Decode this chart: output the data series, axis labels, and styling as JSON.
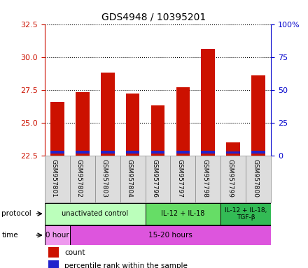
{
  "title": "GDS4948 / 10395201",
  "samples": [
    "GSM957801",
    "GSM957802",
    "GSM957803",
    "GSM957804",
    "GSM957796",
    "GSM957797",
    "GSM957798",
    "GSM957799",
    "GSM957800"
  ],
  "count_values": [
    26.6,
    27.3,
    28.8,
    27.2,
    26.3,
    27.7,
    30.6,
    23.5,
    28.6
  ],
  "percentile_bottom": [
    22.65,
    22.65,
    22.65,
    22.65,
    22.65,
    22.65,
    22.65,
    22.65,
    22.65
  ],
  "percentile_height": [
    0.22,
    0.22,
    0.22,
    0.22,
    0.22,
    0.22,
    0.22,
    0.13,
    0.22
  ],
  "ylim": [
    22.5,
    32.5
  ],
  "yticks_left": [
    22.5,
    25.0,
    27.5,
    30.0,
    32.5
  ],
  "yticks_right": [
    0,
    25,
    50,
    75,
    100
  ],
  "bar_color": "#cc1100",
  "blue_color": "#2222cc",
  "bar_width": 0.55,
  "protocol_groups": [
    {
      "label": "unactivated control",
      "start": 0,
      "end": 4,
      "color": "#bbffbb"
    },
    {
      "label": "IL-12 + IL-18",
      "start": 4,
      "end": 7,
      "color": "#66dd66"
    },
    {
      "label": "IL-12 + IL-18,\nTGF-β",
      "start": 7,
      "end": 9,
      "color": "#33bb55"
    }
  ],
  "time_groups": [
    {
      "label": "0 hour",
      "start": 0,
      "end": 1,
      "color": "#ee99ee"
    },
    {
      "label": "15-20 hours",
      "start": 1,
      "end": 9,
      "color": "#dd55dd"
    }
  ],
  "protocol_label": "protocol",
  "time_label": "time",
  "legend_count": "count",
  "legend_pct": "percentile rank within the sample",
  "background_color": "#ffffff",
  "left_axis_color": "#cc1100",
  "right_axis_color": "#0000cc",
  "sample_box_color": "#dddddd",
  "sample_box_edge": "#888888"
}
